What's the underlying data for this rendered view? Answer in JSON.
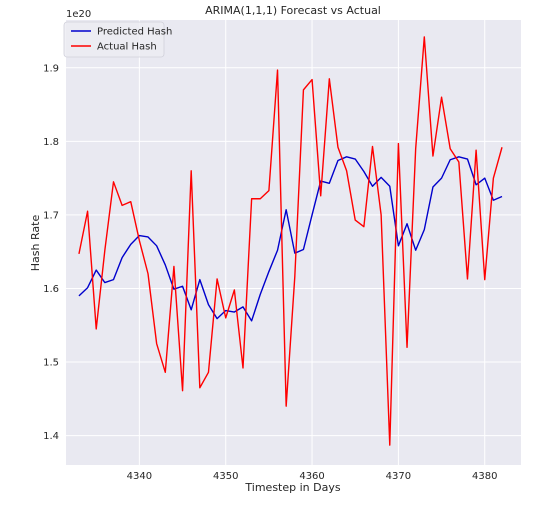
{
  "chart_data": {
    "type": "line",
    "title": "ARIMA(1,1,1) Forecast vs Actual",
    "xlabel": "Timestep in Days",
    "ylabel": "Hash Rate",
    "y_offset_label": "1e20",
    "y_scale": 1e+20,
    "xlim": [
      4331.5,
      4384.2
    ],
    "ylim": [
      1.36,
      1.965
    ],
    "x_ticks": [
      4340,
      4350,
      4360,
      4370,
      4380
    ],
    "y_ticks": [
      1.4,
      1.5,
      1.6,
      1.7,
      1.8,
      1.9
    ],
    "y_tick_labels": [
      "1.4",
      "1.5",
      "1.6",
      "1.7",
      "1.8",
      "1.9"
    ],
    "grid": true,
    "legend_position": "top-left",
    "x": [
      4333,
      4334,
      4335,
      4336,
      4337,
      4338,
      4339,
      4340,
      4341,
      4342,
      4343,
      4344,
      4345,
      4346,
      4347,
      4348,
      4349,
      4350,
      4351,
      4352,
      4353,
      4354,
      4355,
      4356,
      4357,
      4358,
      4359,
      4360,
      4361,
      4362,
      4363,
      4364,
      4365,
      4366,
      4367,
      4368,
      4369,
      4370,
      4371,
      4372,
      4373,
      4374,
      4375,
      4376,
      4377,
      4378,
      4379,
      4380,
      4381,
      4382
    ],
    "series": [
      {
        "name": "Predicted Hash",
        "color": "#0000cc",
        "values": [
          1.59,
          1.601,
          1.625,
          1.608,
          1.612,
          1.642,
          1.66,
          1.672,
          1.67,
          1.658,
          1.632,
          1.599,
          1.603,
          1.571,
          1.612,
          1.578,
          1.559,
          1.57,
          1.568,
          1.575,
          1.556,
          1.592,
          1.623,
          1.652,
          1.707,
          1.648,
          1.653,
          1.7,
          1.746,
          1.743,
          1.774,
          1.779,
          1.776,
          1.759,
          1.739,
          1.751,
          1.739,
          1.658,
          1.688,
          1.652,
          1.68,
          1.738,
          1.75,
          1.775,
          1.779,
          1.776,
          1.741,
          1.75,
          1.72,
          1.725
        ]
      },
      {
        "name": "Actual Hash",
        "color": "#ff0000",
        "values": [
          1.647,
          1.705,
          1.545,
          1.652,
          1.745,
          1.713,
          1.718,
          1.665,
          1.62,
          1.525,
          1.486,
          1.63,
          1.461,
          1.76,
          1.465,
          1.486,
          1.613,
          1.56,
          1.598,
          1.492,
          1.722,
          1.722,
          1.733,
          1.897,
          1.44,
          1.616,
          1.87,
          1.884,
          1.726,
          1.885,
          1.792,
          1.76,
          1.693,
          1.684,
          1.793,
          1.7,
          1.387,
          1.797,
          1.52,
          1.79,
          1.942,
          1.78,
          1.86,
          1.79,
          1.772,
          1.613,
          1.788,
          1.612,
          1.75,
          1.792
        ]
      }
    ]
  }
}
